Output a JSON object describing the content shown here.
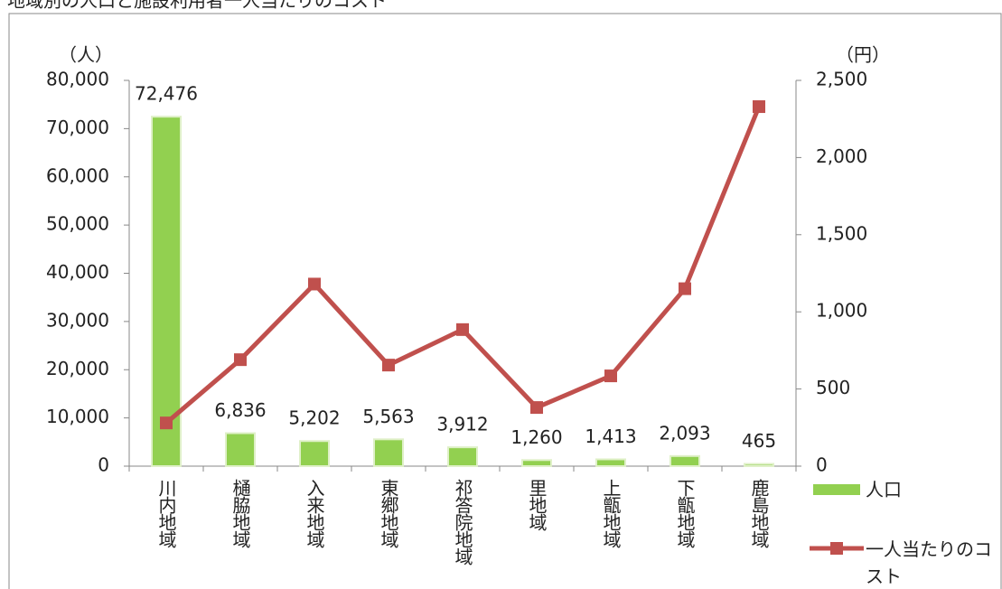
{
  "chart_data": {
    "type": "bar_line",
    "title": "地域別の人口と施設利用者一人当たりのコスト",
    "y_label": "（人）",
    "y2_label": "（円）",
    "categories": [
      "川内地域",
      "樋脇地域",
      "入来地域",
      "東郷地域",
      "祁答院地域",
      "里地域",
      "上甑地域",
      "下甑地域",
      "鹿島地域"
    ],
    "series": [
      {
        "name": "人口",
        "color": "#92d050",
        "kind": "bar",
        "values": [
          72476,
          6836,
          5202,
          5563,
          3912,
          1260,
          1413,
          2093,
          465
        ],
        "value_labels": [
          "72,476",
          "6,836",
          "5,202",
          "5,563",
          "3,912",
          "1,260",
          "1,413",
          "2,093",
          "465"
        ]
      },
      {
        "name": "一人当たりのコスト",
        "color": "#c0504d",
        "kind": "line",
        "axis": "y2",
        "values": [
          280,
          690,
          1180,
          655,
          885,
          380,
          585,
          1150,
          2330
        ]
      }
    ],
    "ylim": [
      0,
      80000
    ],
    "yticks": [
      0,
      {
        "value": 10000,
        "label": "10,000"
      },
      {
        "value": 20000,
        "label": "20,000"
      },
      {
        "value": 30000,
        "label": "30,000"
      },
      {
        "value": 40000,
        "label": "40,000"
      },
      {
        "value": 50000,
        "label": "50,000"
      },
      {
        "value": 60000,
        "label": "60,000"
      },
      {
        "value": 70000,
        "label": "70,000"
      },
      {
        "value": 80000,
        "label": "80,000"
      }
    ],
    "y2lim": [
      0,
      2500
    ],
    "y2ticks": [
      0,
      500,
      {
        "value": 1000,
        "label": "1,000"
      },
      {
        "value": 1500,
        "label": "1,500"
      },
      {
        "value": 2000,
        "label": "2,000"
      },
      {
        "value": 2500,
        "label": "2,500"
      }
    ]
  }
}
